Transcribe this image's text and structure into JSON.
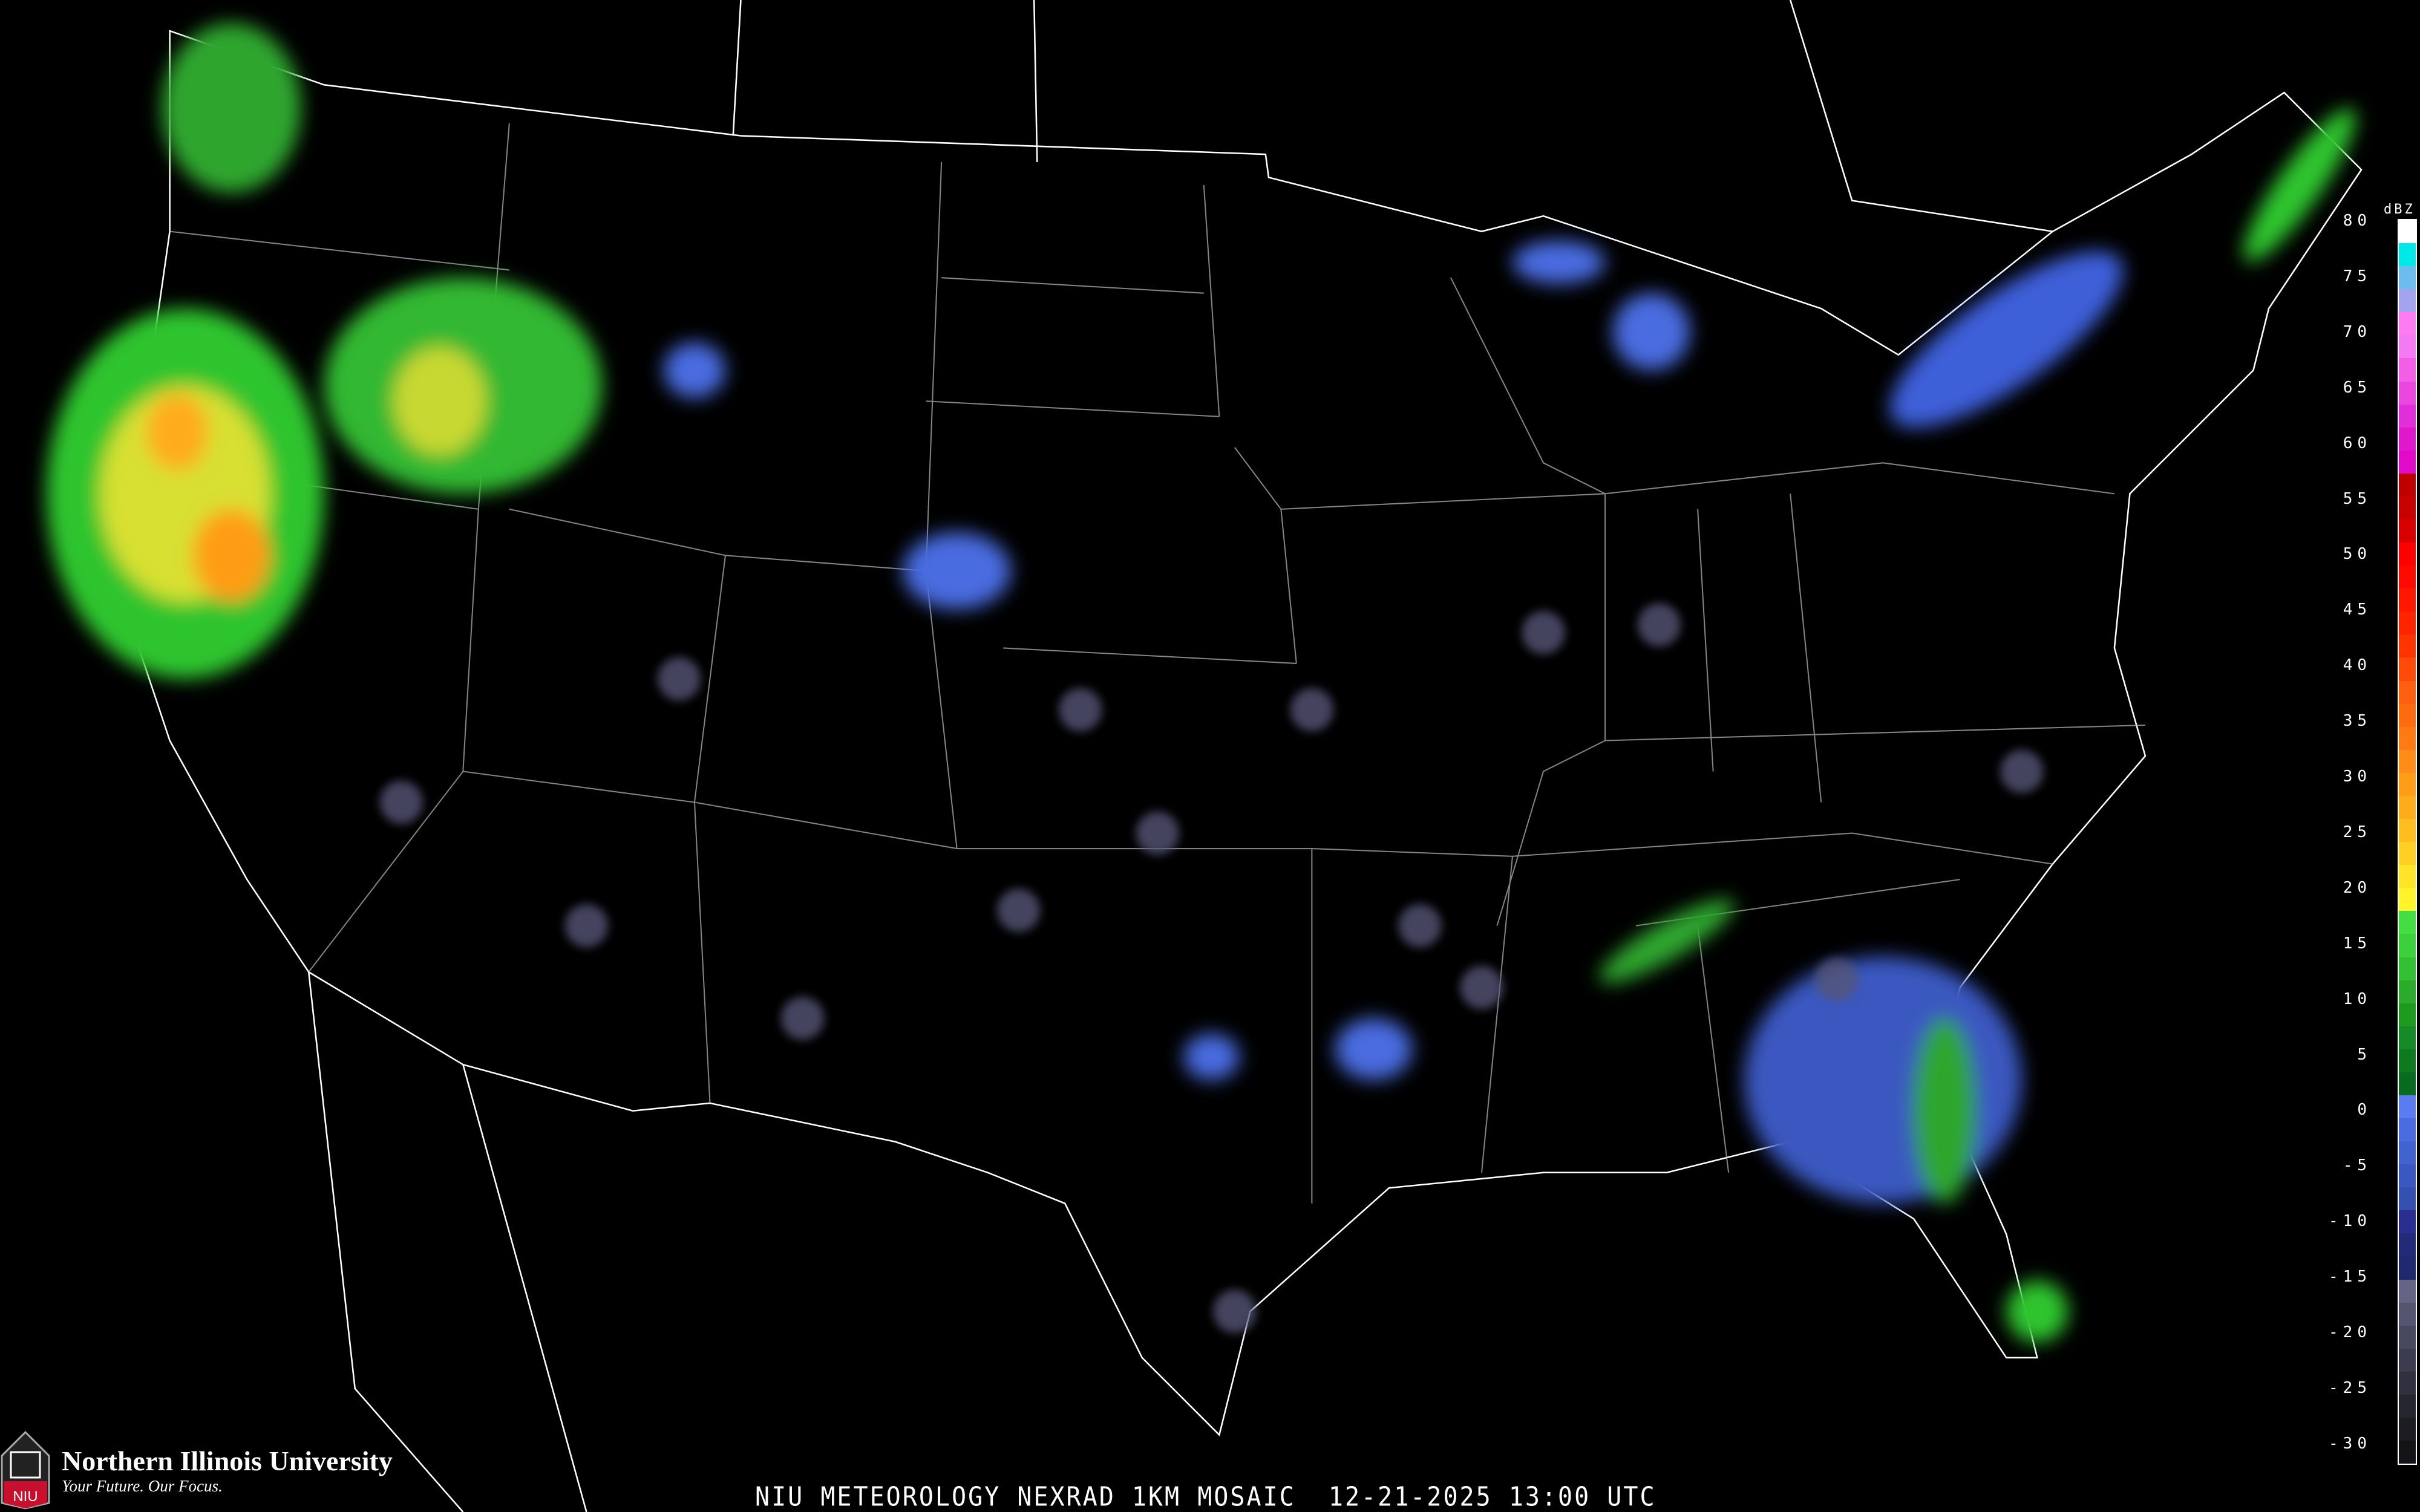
{
  "map": {
    "title": "NIU METEOROLOGY NEXRAD 1KM MOSAIC",
    "date": "12-21-2025",
    "time": "13:00 UTC",
    "region": "Contiguous United States radar reflectivity mosaic",
    "background_color": "#000000",
    "boundary_color": "#ffffff",
    "highway_color": "#8b4a2a"
  },
  "legend": {
    "unit": "dBZ",
    "ticks": [
      "80",
      "75",
      "70",
      "65",
      "60",
      "55",
      "50",
      "45",
      "40",
      "35",
      "30",
      "25",
      "20",
      "15",
      "10",
      "5",
      "0",
      "-5",
      "-10",
      "-15",
      "-20",
      "-25",
      "-30"
    ],
    "colors": [
      "#ffffff",
      "#00e8e8",
      "#6cbcf0",
      "#a4a4ee",
      "#fe7cf2",
      "#f37af2",
      "#f45ee6",
      "#ea46e0",
      "#e02ed8",
      "#e018cc",
      "#e00ac8",
      "#c00000",
      "#c80000",
      "#d80000",
      "#ff0000",
      "#ff0a00",
      "#ff1800",
      "#ff2400",
      "#ff3400",
      "#ff4a08",
      "#ff6010",
      "#ff6c10",
      "#ff7a14",
      "#ff8c18",
      "#ff9c18",
      "#ffac1c",
      "#ffbe20",
      "#ffd024",
      "#ffe428",
      "#fff42c",
      "#44dd44",
      "#3cd03c",
      "#34c034",
      "#2caa2c",
      "#1e9a1e",
      "#168a28",
      "#0e7a20",
      "#086c20",
      "#5a7cf0",
      "#4a6ce0",
      "#4262d0",
      "#3a58c0",
      "#3450b0",
      "#2a2e90",
      "#232a78",
      "#20286e",
      "#646484",
      "#545470",
      "#484860",
      "#3c3c50",
      "#303040",
      "#262630",
      "#1c1c22",
      "#141418"
    ]
  },
  "branding": {
    "name": "Northern Illinois University",
    "tagline": "Your Future. Our Focus.",
    "shield_text": "NIU"
  }
}
